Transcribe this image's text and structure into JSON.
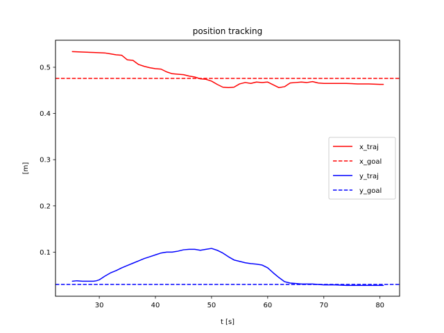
{
  "chart_data": {
    "type": "line",
    "title": "position tracking",
    "xlabel": "t [s]",
    "ylabel": "[m]",
    "xlim": [
      22.2,
      83.5
    ],
    "ylim": [
      0.0045,
      0.5585
    ],
    "xticks": [
      30,
      40,
      50,
      60,
      70,
      80
    ],
    "yticks": [
      0.1,
      0.2,
      0.3,
      0.4,
      0.5
    ],
    "xtick_labels": [
      "30",
      "40",
      "50",
      "60",
      "70",
      "80"
    ],
    "ytick_labels": [
      "0.1",
      "0.2",
      "0.3",
      "0.4",
      "0.5"
    ],
    "grid": false,
    "legend_position": "center-right",
    "series": [
      {
        "name": "x_traj",
        "color": "#ff0000",
        "style": "solid",
        "x": [
          25.2,
          27,
          29,
          31,
          32,
          33,
          34,
          35,
          36,
          37,
          38,
          39,
          40,
          41,
          42,
          43,
          44,
          45,
          46,
          47,
          48,
          49,
          50,
          51,
          52,
          53,
          54,
          55,
          56,
          57,
          58,
          59,
          60,
          61,
          62,
          63,
          64,
          65,
          66,
          67,
          68,
          69,
          70,
          72,
          74,
          76,
          78,
          80,
          80.6
        ],
        "y": [
          0.534,
          0.533,
          0.532,
          0.531,
          0.529,
          0.527,
          0.526,
          0.516,
          0.515,
          0.506,
          0.502,
          0.499,
          0.497,
          0.496,
          0.49,
          0.486,
          0.485,
          0.484,
          0.481,
          0.479,
          0.475,
          0.474,
          0.47,
          0.463,
          0.457,
          0.456,
          0.457,
          0.464,
          0.467,
          0.465,
          0.468,
          0.467,
          0.468,
          0.462,
          0.456,
          0.458,
          0.466,
          0.467,
          0.468,
          0.467,
          0.469,
          0.466,
          0.465,
          0.465,
          0.465,
          0.464,
          0.464,
          0.463,
          0.463
        ]
      },
      {
        "name": "x_goal",
        "color": "#ff0000",
        "style": "dashed",
        "x": [
          22.2,
          83.5
        ],
        "y": [
          0.476,
          0.476
        ]
      },
      {
        "name": "y_traj",
        "color": "#0000ff",
        "style": "solid",
        "x": [
          25.2,
          26,
          27,
          28,
          29,
          29.5,
          30,
          31,
          32,
          33,
          34,
          35,
          36,
          37,
          38,
          39,
          40,
          41,
          42,
          43,
          44,
          45,
          46,
          47,
          48,
          49,
          50,
          51,
          52,
          53,
          54,
          55,
          56,
          57,
          58,
          59,
          60,
          61,
          62,
          63,
          64,
          65,
          66,
          67,
          68,
          69,
          70,
          72,
          74,
          76,
          78,
          80,
          80.6
        ],
        "y": [
          0.037,
          0.038,
          0.037,
          0.037,
          0.037,
          0.038,
          0.04,
          0.048,
          0.055,
          0.06,
          0.066,
          0.071,
          0.076,
          0.081,
          0.086,
          0.09,
          0.094,
          0.098,
          0.1,
          0.1,
          0.102,
          0.105,
          0.106,
          0.106,
          0.104,
          0.106,
          0.108,
          0.104,
          0.098,
          0.09,
          0.083,
          0.08,
          0.077,
          0.075,
          0.074,
          0.072,
          0.066,
          0.055,
          0.045,
          0.036,
          0.033,
          0.032,
          0.031,
          0.031,
          0.031,
          0.03,
          0.029,
          0.029,
          0.028,
          0.028,
          0.028,
          0.028,
          0.028
        ]
      },
      {
        "name": "y_goal",
        "color": "#0000ff",
        "style": "dashed",
        "x": [
          22.2,
          83.5
        ],
        "y": [
          0.03,
          0.03
        ]
      }
    ]
  }
}
